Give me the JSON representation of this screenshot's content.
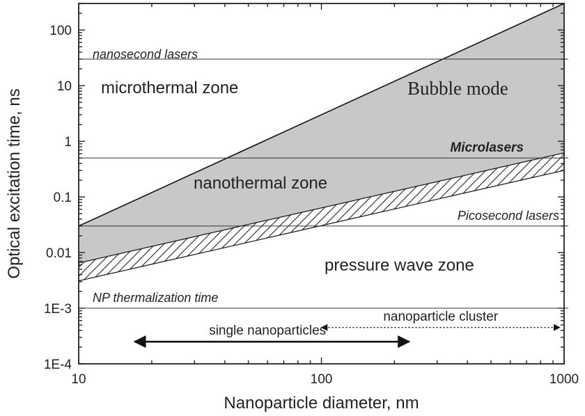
{
  "chart_data": {
    "type": "area",
    "x_scale": "log",
    "y_scale": "log",
    "xlim": [
      10,
      1000
    ],
    "ylim": [
      0.0001,
      300
    ],
    "xlabel": "Nanoparticle diameter, nm",
    "ylabel": "Optical excitation time, ns",
    "x_ticks": [
      {
        "value": 10,
        "label": "10"
      },
      {
        "value": 100,
        "label": "100"
      },
      {
        "value": 1000,
        "label": "1000"
      }
    ],
    "y_ticks": [
      {
        "value": 0.0001,
        "label": "1E-4"
      },
      {
        "value": 0.001,
        "label": "1E-3"
      },
      {
        "value": 0.01,
        "label": "0.01"
      },
      {
        "value": 0.1,
        "label": "0.1"
      },
      {
        "value": 1,
        "label": "1"
      },
      {
        "value": 10,
        "label": "10"
      },
      {
        "value": 100,
        "label": "100"
      }
    ],
    "boundaries": {
      "thermal_confinement": [
        {
          "x": 10,
          "y": 0.03
        },
        {
          "x": 1000,
          "y": 300
        }
      ],
      "stress_band_upper": [
        {
          "x": 10,
          "y": 0.0065
        },
        {
          "x": 1000,
          "y": 0.62
        }
      ],
      "stress_band_lower": [
        {
          "x": 10,
          "y": 0.0031
        },
        {
          "x": 1000,
          "y": 0.3
        }
      ]
    },
    "reference_lines": [
      {
        "y": 30,
        "label": "nanosecond lasers"
      },
      {
        "y": 0.5,
        "label": "Microlasers"
      },
      {
        "y": 0.03,
        "label": "Picosecond lasers"
      },
      {
        "y": 0.001,
        "label": "NP thermalization time"
      }
    ],
    "zones": {
      "microthermal": "microthermal zone",
      "bubble": "Bubble mode",
      "nanothermal": "nanothermal zone",
      "pressure_wave": "pressure wave zone"
    },
    "ranges": [
      {
        "label": "single nanoparticles",
        "x_start": 17,
        "x_end": 230,
        "y": 0.00025,
        "style": "solid"
      },
      {
        "label": "nanoparticle cluster",
        "x_start": 100,
        "x_end": 960,
        "y": 0.00045,
        "style": "dotted"
      }
    ],
    "colors": {
      "fill": "#c8c8c8",
      "hatch": "#333333",
      "line": "#111111",
      "frame": "#222222"
    },
    "grid": false,
    "legend": "none"
  }
}
